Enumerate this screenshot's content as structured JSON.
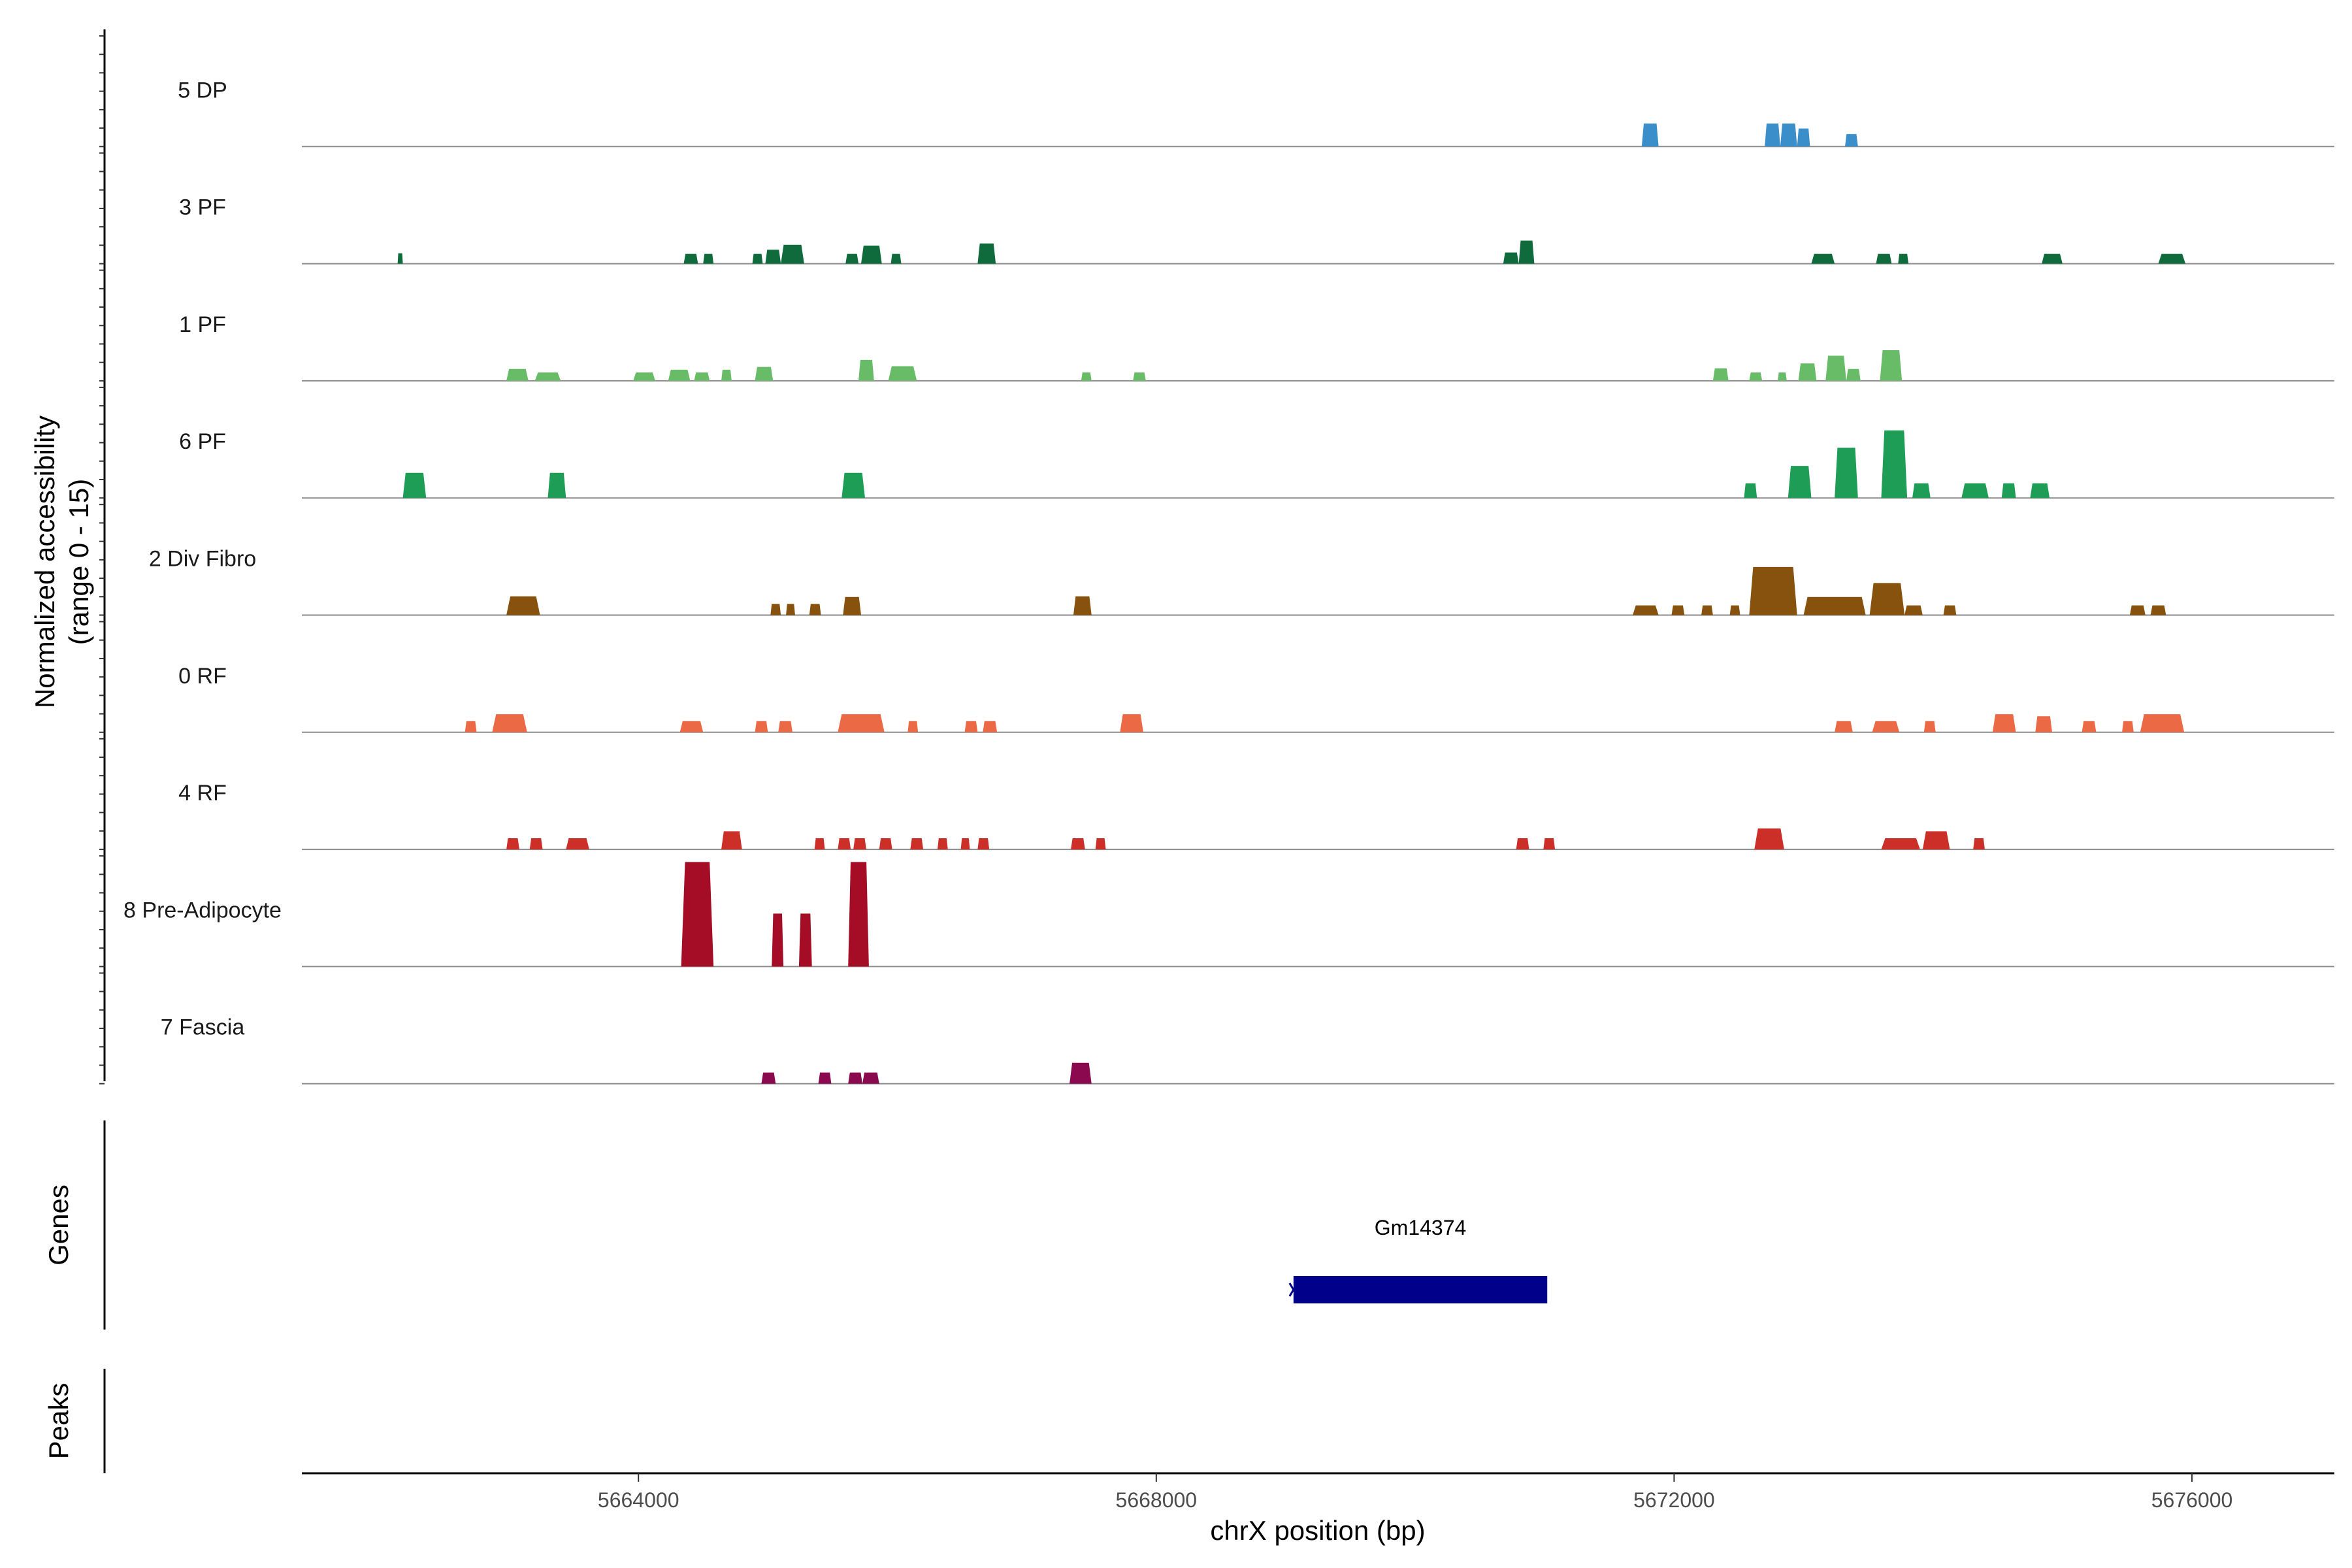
{
  "chart_data": {
    "type": "area",
    "title": "",
    "chromosome": "chrX",
    "xlabel": "chrX position (bp)",
    "xlim": [
      5661400,
      5677100
    ],
    "xticks": [
      5664000,
      5668000,
      5672000,
      5676000
    ],
    "xtick_labels": [
      "5664000",
      "5668000",
      "5672000",
      "5676000"
    ],
    "ylabel_line1": "Normalized accessibility",
    "ylabel_line2": "(range 0 - 15)",
    "ylim": [
      0,
      15
    ],
    "genes_label": "Genes",
    "peaks_label": "Peaks",
    "series": [
      {
        "name": "5 DP",
        "color": "#3A8FCB",
        "peaks": [
          [
            5671750,
            5671880,
            3.3
          ],
          [
            5672700,
            5672820,
            3.3
          ],
          [
            5672820,
            5672950,
            3.3
          ],
          [
            5672950,
            5673050,
            2.6
          ],
          [
            5673320,
            5673420,
            1.8
          ]
        ]
      },
      {
        "name": "3 PF",
        "color": "#0F6B3C",
        "peaks": [
          [
            5662140,
            5662180,
            1.5
          ],
          [
            5664350,
            5664460,
            1.4
          ],
          [
            5664500,
            5664580,
            1.4
          ],
          [
            5664880,
            5664960,
            1.4
          ],
          [
            5664980,
            5665100,
            2.0
          ],
          [
            5665100,
            5665280,
            2.7
          ],
          [
            5665600,
            5665700,
            1.4
          ],
          [
            5665720,
            5665880,
            2.6
          ],
          [
            5665950,
            5666030,
            1.4
          ],
          [
            5666620,
            5666760,
            2.9
          ],
          [
            5670680,
            5670800,
            1.6
          ],
          [
            5670800,
            5670920,
            3.3
          ],
          [
            5673060,
            5673240,
            1.4
          ],
          [
            5673560,
            5673680,
            1.4
          ],
          [
            5673730,
            5673810,
            1.4
          ],
          [
            5674840,
            5675000,
            1.4
          ],
          [
            5675740,
            5675950,
            1.4
          ]
        ]
      },
      {
        "name": "1 PF",
        "color": "#69BC67",
        "peaks": [
          [
            5662980,
            5663150,
            1.7
          ],
          [
            5663200,
            5663400,
            1.2
          ],
          [
            5663960,
            5664130,
            1.2
          ],
          [
            5664230,
            5664400,
            1.6
          ],
          [
            5664430,
            5664550,
            1.2
          ],
          [
            5664640,
            5664720,
            1.6
          ],
          [
            5664900,
            5665040,
            2.0
          ],
          [
            5665700,
            5665820,
            3.0
          ],
          [
            5665930,
            5666150,
            2.1
          ],
          [
            5667420,
            5667500,
            1.2
          ],
          [
            5667820,
            5667920,
            1.2
          ],
          [
            5672300,
            5672420,
            1.8
          ],
          [
            5672580,
            5672680,
            1.2
          ],
          [
            5672800,
            5672870,
            1.2
          ],
          [
            5672960,
            5673100,
            2.5
          ],
          [
            5673170,
            5673330,
            3.6
          ],
          [
            5673330,
            5673440,
            1.7
          ],
          [
            5673590,
            5673760,
            4.4
          ]
        ]
      },
      {
        "name": "6 PF",
        "color": "#1E9D57",
        "peaks": [
          [
            5662180,
            5662360,
            3.6
          ],
          [
            5663300,
            5663440,
            3.6
          ],
          [
            5665570,
            5665750,
            3.6
          ],
          [
            5672540,
            5672640,
            2.1
          ],
          [
            5672880,
            5673060,
            4.6
          ],
          [
            5673240,
            5673420,
            7.2
          ],
          [
            5673600,
            5673800,
            9.7
          ],
          [
            5673840,
            5673980,
            2.1
          ],
          [
            5674220,
            5674430,
            2.1
          ],
          [
            5674530,
            5674640,
            2.1
          ],
          [
            5674750,
            5674900,
            2.1
          ]
        ]
      },
      {
        "name": "2 Div Fibro",
        "color": "#87520E",
        "peaks": [
          [
            5662980,
            5663240,
            2.7
          ],
          [
            5665020,
            5665100,
            1.6
          ],
          [
            5665140,
            5665210,
            1.6
          ],
          [
            5665320,
            5665410,
            1.6
          ],
          [
            5665580,
            5665720,
            2.6
          ],
          [
            5667360,
            5667500,
            2.7
          ],
          [
            5671680,
            5671880,
            1.4
          ],
          [
            5671980,
            5672080,
            1.4
          ],
          [
            5672210,
            5672300,
            1.4
          ],
          [
            5672430,
            5672510,
            1.4
          ],
          [
            5672580,
            5672950,
            6.9
          ],
          [
            5673000,
            5673480,
            2.6
          ],
          [
            5673510,
            5673780,
            4.6
          ],
          [
            5673780,
            5673920,
            1.4
          ],
          [
            5674080,
            5674180,
            1.4
          ],
          [
            5675520,
            5675640,
            1.4
          ],
          [
            5675680,
            5675800,
            1.4
          ]
        ]
      },
      {
        "name": "0 RF",
        "color": "#EB6A45",
        "peaks": [
          [
            5662660,
            5662750,
            1.6
          ],
          [
            5662870,
            5663140,
            2.6
          ],
          [
            5664320,
            5664500,
            1.6
          ],
          [
            5664900,
            5665000,
            1.6
          ],
          [
            5665080,
            5665190,
            1.6
          ],
          [
            5665540,
            5665900,
            2.6
          ],
          [
            5666080,
            5666160,
            1.6
          ],
          [
            5666520,
            5666620,
            1.6
          ],
          [
            5666660,
            5666770,
            1.6
          ],
          [
            5667720,
            5667900,
            2.6
          ],
          [
            5673240,
            5673380,
            1.6
          ],
          [
            5673530,
            5673740,
            1.6
          ],
          [
            5673930,
            5674020,
            1.6
          ],
          [
            5674460,
            5674640,
            2.6
          ],
          [
            5674790,
            5674920,
            2.3
          ],
          [
            5675150,
            5675260,
            1.6
          ],
          [
            5675460,
            5675550,
            1.6
          ],
          [
            5675600,
            5675940,
            2.6
          ]
        ]
      },
      {
        "name": "4 RF",
        "color": "#CC2F27",
        "peaks": [
          [
            5662980,
            5663080,
            1.6
          ],
          [
            5663160,
            5663260,
            1.6
          ],
          [
            5663440,
            5663620,
            1.6
          ],
          [
            5664640,
            5664800,
            2.6
          ],
          [
            5665360,
            5665440,
            1.6
          ],
          [
            5665540,
            5665640,
            1.6
          ],
          [
            5665660,
            5665760,
            1.6
          ],
          [
            5665860,
            5665960,
            1.6
          ],
          [
            5666100,
            5666200,
            1.6
          ],
          [
            5666310,
            5666390,
            1.6
          ],
          [
            5666490,
            5666560,
            1.6
          ],
          [
            5666620,
            5666710,
            1.6
          ],
          [
            5667340,
            5667450,
            1.6
          ],
          [
            5667530,
            5667610,
            1.6
          ],
          [
            5670780,
            5670880,
            1.6
          ],
          [
            5670990,
            5671080,
            1.6
          ],
          [
            5672620,
            5672850,
            3.0
          ],
          [
            5673600,
            5673900,
            1.6
          ],
          [
            5673920,
            5674130,
            2.6
          ],
          [
            5674310,
            5674400,
            1.6
          ]
        ]
      },
      {
        "name": "8 Pre-Adipocyte",
        "color": "#A50D26",
        "peaks": [
          [
            5664330,
            5664580,
            15.0
          ],
          [
            5665030,
            5665120,
            7.6
          ],
          [
            5665240,
            5665340,
            7.6
          ],
          [
            5665620,
            5665780,
            15.0
          ]
        ]
      },
      {
        "name": "7 Fascia",
        "color": "#8B0A4F",
        "peaks": [
          [
            5664950,
            5665060,
            1.6
          ],
          [
            5665390,
            5665490,
            1.6
          ],
          [
            5665620,
            5665730,
            1.6
          ],
          [
            5665730,
            5665860,
            1.6
          ],
          [
            5667330,
            5667500,
            3.0
          ]
        ]
      }
    ],
    "genes": [
      {
        "name": "Gm14374",
        "start": 5669060,
        "end": 5671020,
        "strand": "-",
        "color": "#00008B"
      }
    ]
  }
}
